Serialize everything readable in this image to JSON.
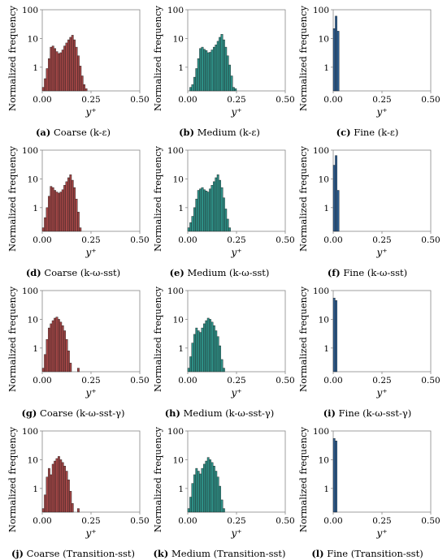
{
  "colors": {
    "coarse": "#a04545",
    "medium": "#2e8f86",
    "fine": "#2d5d8f",
    "bar_edge": "#1a1a1a",
    "axis": "#888888"
  },
  "chart_data": [
    {
      "type": "bar",
      "panel": "a",
      "caption_letter": "(a)",
      "caption_text": "Coarse (k-ε)",
      "color_key": "coarse",
      "xlabel": "y⁺",
      "ylabel": "Normalized frequency",
      "xlim": [
        0,
        0.5
      ],
      "ylim_log": [
        0.15,
        100
      ],
      "yscale": "log",
      "xticks": [
        "0.00",
        "0.25",
        "0.50"
      ],
      "yticks": [
        "1",
        "10",
        "100"
      ],
      "bin_width": 0.01,
      "bin_start": 0.0,
      "values": [
        0.2,
        0.4,
        0.9,
        2,
        5,
        5.5,
        4.5,
        3.5,
        3,
        3.2,
        4,
        5.5,
        7,
        9,
        11,
        13,
        9,
        5,
        2.5,
        1.1,
        0.5,
        0.25,
        0.18
      ]
    },
    {
      "type": "bar",
      "panel": "b",
      "caption_letter": "(b)",
      "caption_text": "Medium (k-ε)",
      "color_key": "medium",
      "xlabel": "y⁺",
      "ylabel": "Normalized frequency",
      "xlim": [
        0,
        0.5
      ],
      "ylim_log": [
        0.15,
        100
      ],
      "yscale": "log",
      "xticks": [
        "0.00",
        "0.25",
        "0.50"
      ],
      "yticks": [
        "1",
        "10",
        "100"
      ],
      "bin_width": 0.01,
      "bin_start": 0.01,
      "values": [
        0.2,
        0.25,
        0.45,
        0.9,
        2,
        4.5,
        5,
        4.2,
        3.8,
        3.2,
        3.3,
        4,
        5,
        6,
        8,
        11,
        14,
        9,
        5,
        2.5,
        1.2,
        0.5,
        0.2,
        0.18
      ]
    },
    {
      "type": "bar",
      "panel": "c",
      "caption_letter": "(c)",
      "caption_text": "Fine (k-ε)",
      "color_key": "fine",
      "xlabel": "y⁺",
      "ylabel": "Normalized frequency",
      "xlim": [
        0,
        0.5
      ],
      "ylim_log": [
        0.15,
        100
      ],
      "yscale": "log",
      "xticks": [
        "0.00",
        "0.25",
        "0.50"
      ],
      "yticks": [
        "1",
        "10",
        "100"
      ],
      "bin_width": 0.01,
      "bin_start": 0.0,
      "values": [
        22,
        60,
        18
      ]
    },
    {
      "type": "bar",
      "panel": "d",
      "caption_letter": "(d)",
      "caption_text": "Coarse (k-ω-sst)",
      "color_key": "coarse",
      "xlabel": "y⁺",
      "ylabel": "Normalized frequency",
      "xlim": [
        0,
        0.5
      ],
      "ylim_log": [
        0.15,
        100
      ],
      "yscale": "log",
      "xticks": [
        "0.00",
        "0.25",
        "0.50"
      ],
      "yticks": [
        "1",
        "10",
        "100"
      ],
      "bin_width": 0.01,
      "bin_start": 0.0,
      "values": [
        0.2,
        0.45,
        1,
        2.5,
        5.5,
        5,
        4,
        3.5,
        3.2,
        3.5,
        4.2,
        6,
        8,
        11,
        14,
        9,
        5,
        2,
        0.7,
        0.2
      ]
    },
    {
      "type": "bar",
      "panel": "e",
      "caption_letter": "(e)",
      "caption_text": "Medium (k-ω-sst)",
      "color_key": "medium",
      "xlabel": "y⁺",
      "ylabel": "Normalized frequency",
      "xlim": [
        0,
        0.5
      ],
      "ylim_log": [
        0.15,
        100
      ],
      "yscale": "log",
      "xticks": [
        "0.00",
        "0.25",
        "0.50"
      ],
      "yticks": [
        "1",
        "10",
        "100"
      ],
      "bin_width": 0.01,
      "bin_start": 0.0,
      "values": [
        0.2,
        0.3,
        0.5,
        1,
        2,
        4,
        4.5,
        5,
        4.2,
        3.8,
        3.5,
        4.5,
        6,
        8,
        11,
        14,
        9,
        5,
        2.2,
        0.9,
        0.4,
        0.2
      ]
    },
    {
      "type": "bar",
      "panel": "f",
      "caption_letter": "(f)",
      "caption_text": "Fine (k-ω-sst)",
      "color_key": "fine",
      "xlabel": "y⁺",
      "ylabel": "Normalized frequency",
      "xlim": [
        0,
        0.5
      ],
      "ylim_log": [
        0.15,
        100
      ],
      "yscale": "log",
      "xticks": [
        "0.00",
        "0.25",
        "0.50"
      ],
      "yticks": [
        "1",
        "10",
        "100"
      ],
      "bin_width": 0.01,
      "bin_start": 0.0,
      "values": [
        30,
        65,
        4
      ]
    },
    {
      "type": "bar",
      "panel": "g",
      "caption_letter": "(g)",
      "caption_text": "Coarse (k-ω-sst-γ)",
      "color_key": "coarse",
      "xlabel": "y⁺",
      "ylabel": "Normalized frequency",
      "xlim": [
        0,
        0.5
      ],
      "ylim_log": [
        0.15,
        100
      ],
      "yscale": "log",
      "xticks": [
        "0.00",
        "0.25",
        "0.50"
      ],
      "yticks": [
        "1",
        "10",
        "100"
      ],
      "bin_width": 0.01,
      "bin_start": 0.0,
      "values": [
        0.2,
        0.6,
        2,
        5,
        7,
        9,
        11,
        12,
        10,
        8,
        6,
        4,
        2,
        0.8,
        0.3,
        0,
        0,
        0,
        0.2
      ]
    },
    {
      "type": "bar",
      "panel": "h",
      "caption_letter": "(h)",
      "caption_text": "Medium (k-ω-sst-γ)",
      "color_key": "medium",
      "xlabel": "y⁺",
      "ylabel": "Normalized frequency",
      "xlim": [
        0,
        0.5
      ],
      "ylim_log": [
        0.15,
        100
      ],
      "yscale": "log",
      "xticks": [
        "0.00",
        "0.25",
        "0.50"
      ],
      "yticks": [
        "1",
        "10",
        "100"
      ],
      "bin_width": 0.01,
      "bin_start": 0.0,
      "values": [
        0.2,
        0.5,
        1.5,
        3,
        5,
        4,
        3.5,
        5,
        7,
        9,
        11,
        10,
        8,
        6,
        4,
        2.5,
        1.2,
        0.4,
        0.2
      ]
    },
    {
      "type": "bar",
      "panel": "i",
      "caption_letter": "(i)",
      "caption_text": "Fine (k-ω-sst-γ)",
      "color_key": "fine",
      "xlabel": "y⁺",
      "ylabel": "Normalized frequency",
      "xlim": [
        0,
        0.5
      ],
      "ylim_log": [
        0.15,
        100
      ],
      "yscale": "log",
      "xticks": [
        "0.00",
        "0.25",
        "0.50"
      ],
      "yticks": [
        "1",
        "10",
        "100"
      ],
      "bin_width": 0.01,
      "bin_start": 0.0,
      "values": [
        55,
        45
      ]
    },
    {
      "type": "bar",
      "panel": "j",
      "caption_letter": "(j)",
      "caption_text": "Coarse (Transition-sst)",
      "color_key": "coarse",
      "xlabel": "y⁺",
      "ylabel": "Normalized frequency",
      "xlim": [
        0,
        0.5
      ],
      "ylim_log": [
        0.15,
        100
      ],
      "yscale": "log",
      "xticks": [
        "0.00",
        "0.25",
        "0.50"
      ],
      "yticks": [
        "1",
        "10",
        "100"
      ],
      "bin_width": 0.01,
      "bin_start": 0.0,
      "values": [
        0.2,
        0.6,
        2.5,
        5,
        3,
        7,
        9,
        11,
        13,
        10,
        8,
        6,
        4,
        2,
        0.8,
        0.3,
        0,
        0,
        0.2
      ]
    },
    {
      "type": "bar",
      "panel": "k",
      "caption_letter": "(k)",
      "caption_text": "Medium (Transition-sst)",
      "color_key": "medium",
      "xlabel": "y⁺",
      "ylabel": "Normalized frequency",
      "xlim": [
        0,
        0.5
      ],
      "ylim_log": [
        0.15,
        100
      ],
      "yscale": "log",
      "xticks": [
        "0.00",
        "0.25",
        "0.50"
      ],
      "yticks": [
        "1",
        "10",
        "100"
      ],
      "bin_width": 0.01,
      "bin_start": 0.0,
      "values": [
        0.2,
        0.5,
        1.5,
        3,
        5,
        4,
        3.2,
        5,
        7,
        9,
        12,
        10,
        8,
        6,
        4,
        2.5,
        1.2,
        0.4,
        0.2
      ]
    },
    {
      "type": "bar",
      "panel": "l",
      "caption_letter": "(l)",
      "caption_text": "Fine (Transition-sst)",
      "color_key": "fine",
      "xlabel": "y⁺",
      "ylabel": "Normalized frequency",
      "xlim": [
        0,
        0.5
      ],
      "ylim_log": [
        0.15,
        100
      ],
      "yscale": "log",
      "xticks": [
        "0.00",
        "0.25",
        "0.50"
      ],
      "yticks": [
        "1",
        "10",
        "100"
      ],
      "bin_width": 0.01,
      "bin_start": 0.0,
      "values": [
        55,
        45
      ]
    }
  ]
}
